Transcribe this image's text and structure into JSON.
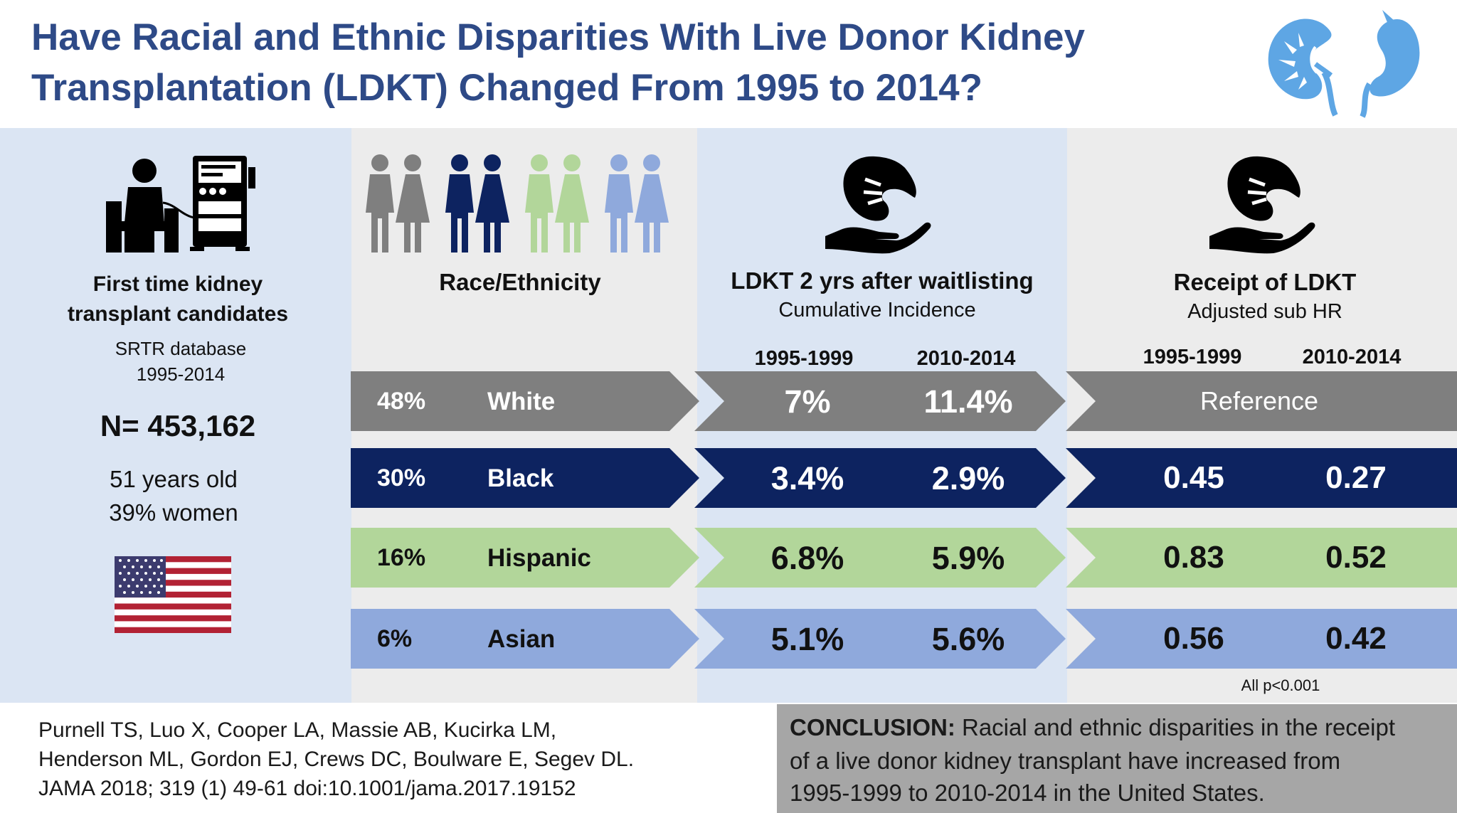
{
  "title": {
    "line1": "Have Racial and Ethnic Disparities With Live Donor Kidney",
    "line2": "Transplantation (LDKT) Changed From 1995 to 2014?"
  },
  "left_panel": {
    "heading_line1": "First time kidney",
    "heading_line2": "transplant candidates",
    "source_line1": "SRTR database",
    "source_line2": "1995-2014",
    "n": "N= 453,162",
    "age": "51 years old",
    "women": "39% women"
  },
  "race_panel": {
    "heading": "Race/Ethnicity"
  },
  "incidence_panel": {
    "heading": "LDKT 2 yrs after waitlisting",
    "subheading": "Cumulative Incidence",
    "period1": "1995-1999",
    "period2": "2010-2014"
  },
  "hr_panel": {
    "heading": "Receipt of LDKT",
    "subheading": "Adjusted sub HR",
    "period1": "1995-1999",
    "period2": "2010-2014",
    "footnote": "All p<0.001"
  },
  "rows": [
    {
      "percent": "48%",
      "group": "White",
      "inc1": "7%",
      "inc2": "11.4%",
      "hr_reference": "Reference",
      "color": "#7f7f7f",
      "text_color": "#ffffff"
    },
    {
      "percent": "30%",
      "group": "Black",
      "inc1": "3.4%",
      "inc2": "2.9%",
      "hr1": "0.45",
      "hr2": "0.27",
      "color": "#0d2360",
      "text_color": "#ffffff"
    },
    {
      "percent": "16%",
      "group": "Hispanic",
      "inc1": "6.8%",
      "inc2": "5.9%",
      "hr1": "0.83",
      "hr2": "0.52",
      "color": "#b2d69a",
      "text_color": "#111111"
    },
    {
      "percent": "6%",
      "group": "Asian",
      "inc1": "5.1%",
      "inc2": "5.6%",
      "hr1": "0.56",
      "hr2": "0.42",
      "color": "#8fa9dc",
      "text_color": "#111111"
    }
  ],
  "citation": {
    "line1": "Purnell TS, Luo X, Cooper LA, Massie AB, Kucirka LM,",
    "line2": "Henderson ML, Gordon EJ, Crews DC, Boulware E, Segev DL.",
    "line3": "JAMA 2018; 319 (1) 49-61 doi:10.1001/jama.2017.19152"
  },
  "conclusion": {
    "label": "CONCLUSION:",
    "line1": "Racial and ethnic disparities in the receipt",
    "line2": "of a live donor kidney transplant have increased from",
    "line3": "1995-1999 to 2010-2014 in the United States."
  },
  "icons": {
    "header": "kidney-icon",
    "left": "dialysis-patient-icon",
    "flag": "us-flag-icon",
    "people": "people-group-icon",
    "hand": "hand-holding-kidney-icon"
  },
  "colors": {
    "title": "#2e4a87",
    "panel_blue": "#dbe5f3",
    "panel_gray": "#ececec",
    "white_row": "#7f7f7f",
    "black_row": "#0d2360",
    "hispanic_row": "#b2d69a",
    "asian_row": "#8fa9dc",
    "conclusion_bg": "#a6a6a6"
  }
}
